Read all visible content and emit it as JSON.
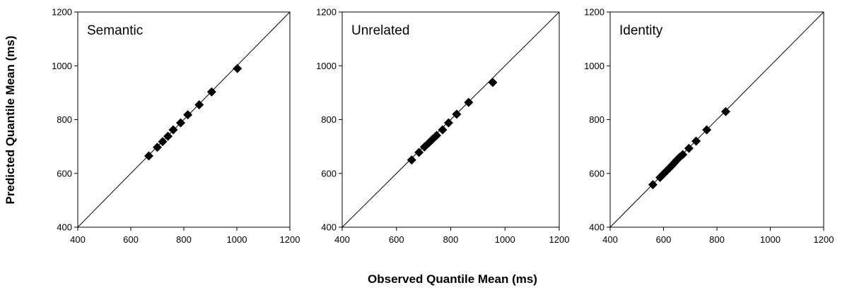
{
  "figure": {
    "xlabel": "Observed Quantile Mean (ms)",
    "ylabel": "Predicted Quantile Mean (ms)"
  },
  "chart_data": [
    {
      "type": "scatter",
      "title": "Semantic",
      "xlim": [
        400,
        1200
      ],
      "ylim": [
        400,
        1200
      ],
      "xticks": [
        400,
        600,
        800,
        1000,
        1200
      ],
      "yticks": [
        400,
        600,
        800,
        1000,
        1200
      ],
      "reference_line": "y = x",
      "marker": "diamond",
      "points": [
        {
          "x": 668,
          "y": 665
        },
        {
          "x": 700,
          "y": 697
        },
        {
          "x": 720,
          "y": 718
        },
        {
          "x": 740,
          "y": 738
        },
        {
          "x": 760,
          "y": 762
        },
        {
          "x": 788,
          "y": 788
        },
        {
          "x": 815,
          "y": 818
        },
        {
          "x": 858,
          "y": 855
        },
        {
          "x": 905,
          "y": 903
        },
        {
          "x": 1002,
          "y": 990
        }
      ]
    },
    {
      "type": "scatter",
      "title": "Unrelated",
      "xlim": [
        400,
        1200
      ],
      "ylim": [
        400,
        1200
      ],
      "xticks": [
        400,
        600,
        800,
        1000,
        1200
      ],
      "yticks": [
        400,
        600,
        800,
        1000,
        1200
      ],
      "reference_line": "y = x",
      "marker": "diamond",
      "points": [
        {
          "x": 656,
          "y": 650
        },
        {
          "x": 683,
          "y": 678
        },
        {
          "x": 703,
          "y": 698
        },
        {
          "x": 718,
          "y": 712
        },
        {
          "x": 733,
          "y": 727
        },
        {
          "x": 748,
          "y": 741
        },
        {
          "x": 770,
          "y": 762
        },
        {
          "x": 792,
          "y": 788
        },
        {
          "x": 822,
          "y": 820
        },
        {
          "x": 866,
          "y": 864
        },
        {
          "x": 955,
          "y": 938
        }
      ]
    },
    {
      "type": "scatter",
      "title": "Identity",
      "xlim": [
        400,
        1200
      ],
      "ylim": [
        400,
        1200
      ],
      "xticks": [
        400,
        600,
        800,
        1000,
        1200
      ],
      "yticks": [
        400,
        600,
        800,
        1000,
        1200
      ],
      "reference_line": "y = x",
      "marker": "diamond",
      "points": [
        {
          "x": 560,
          "y": 558
        },
        {
          "x": 587,
          "y": 585
        },
        {
          "x": 600,
          "y": 598
        },
        {
          "x": 612,
          "y": 610
        },
        {
          "x": 622,
          "y": 620
        },
        {
          "x": 632,
          "y": 630
        },
        {
          "x": 641,
          "y": 640
        },
        {
          "x": 650,
          "y": 650
        },
        {
          "x": 660,
          "y": 660
        },
        {
          "x": 672,
          "y": 670
        },
        {
          "x": 695,
          "y": 693
        },
        {
          "x": 722,
          "y": 720
        },
        {
          "x": 762,
          "y": 762
        },
        {
          "x": 833,
          "y": 830
        }
      ]
    }
  ]
}
